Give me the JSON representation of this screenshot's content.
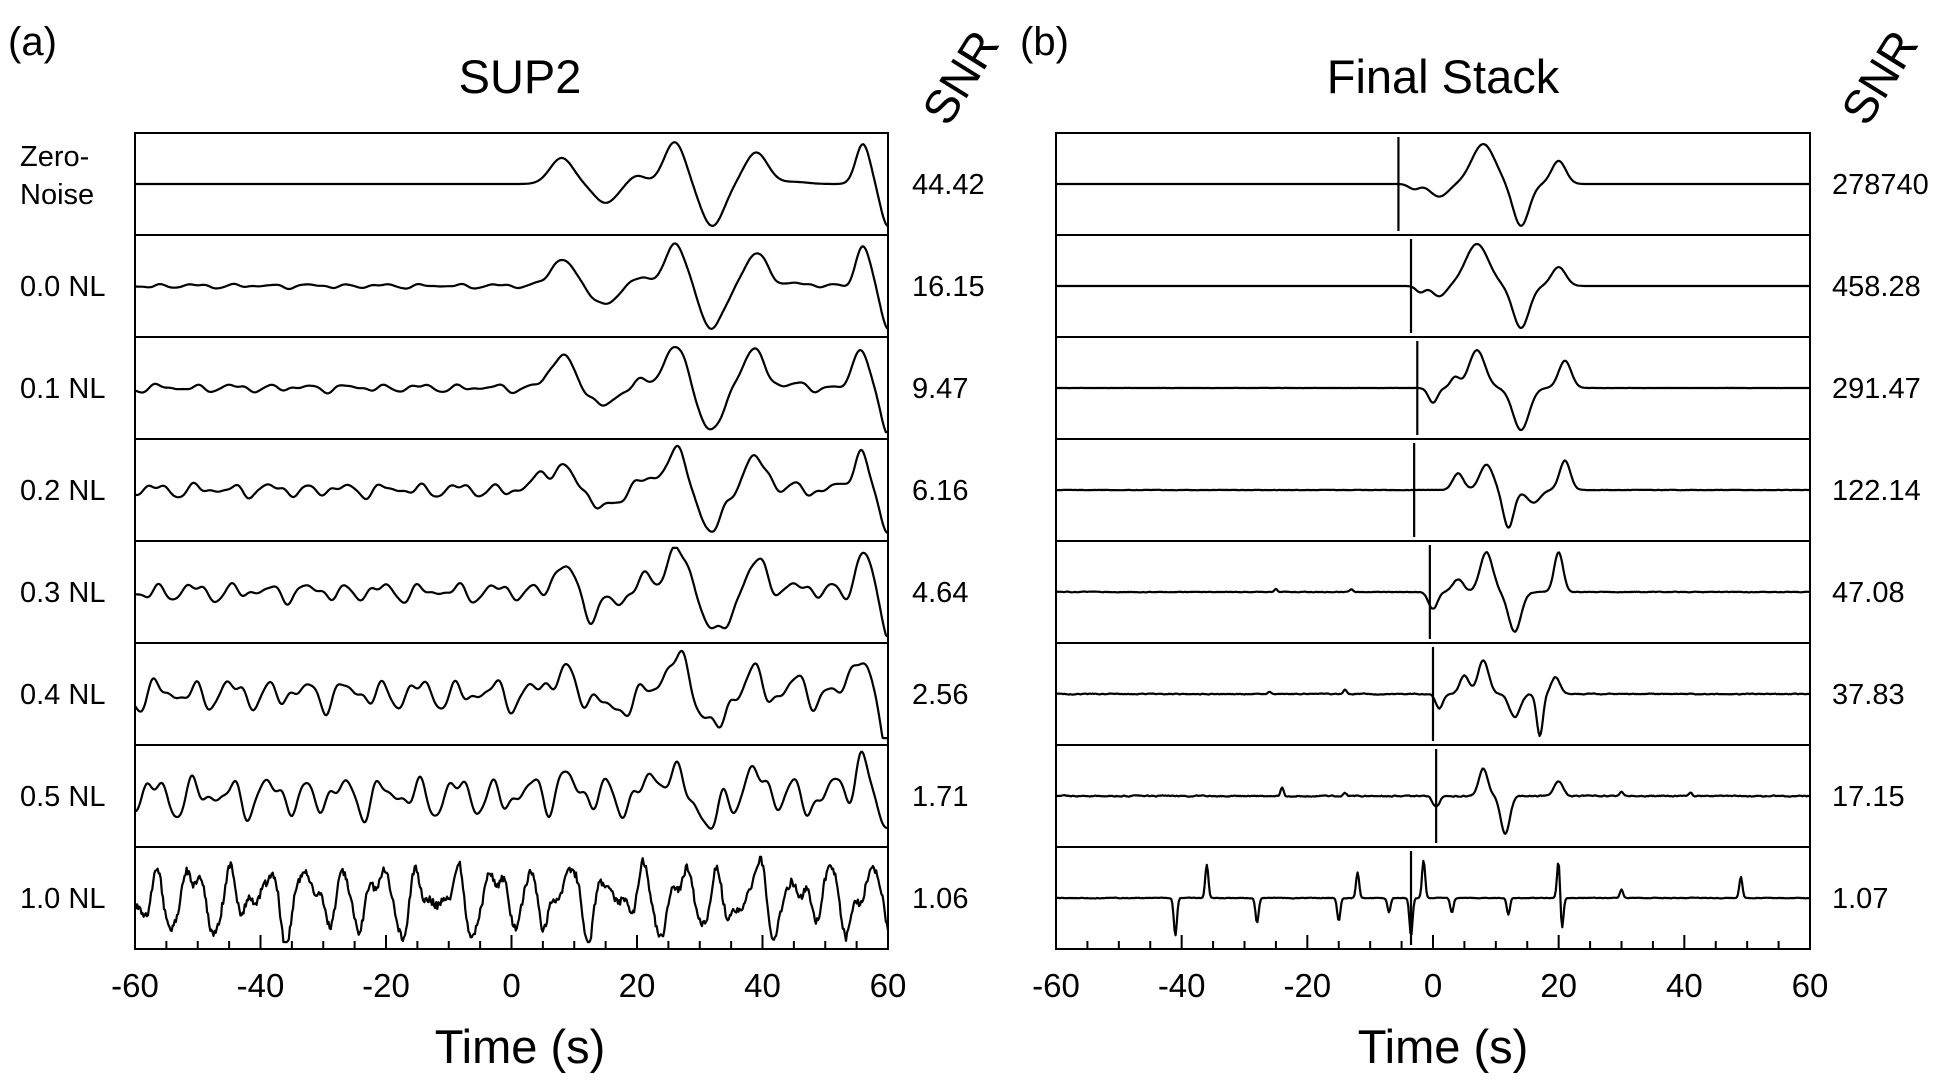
{
  "chart_data": [
    {
      "type": "line",
      "panel_letter": "(a)",
      "title": "SUP2",
      "snr_header": "SNR",
      "xlabel": "Time (s)",
      "xlim": [
        -60,
        60
      ],
      "xticks": [
        "-60",
        "-40",
        "-20",
        "0",
        "20",
        "40",
        "60"
      ],
      "rows": [
        {
          "label": [
            "Zero-",
            "Noise"
          ],
          "snr": "44.42",
          "noise": 0.0,
          "smooth": 0.0,
          "onset": -5,
          "peaks": [
            [
              8,
              0.62,
              2.6
            ],
            [
              15,
              -0.45,
              2.6
            ],
            [
              20,
              0.2,
              2
            ],
            [
              26,
              1.0,
              2.4
            ],
            [
              32,
              -1.0,
              2.6
            ],
            [
              39,
              0.75,
              2.6
            ],
            [
              45,
              0.05,
              3
            ],
            [
              50,
              0.0,
              2
            ],
            [
              56,
              0.95,
              1.6
            ],
            [
              60,
              -1.0,
              1.6
            ]
          ]
        },
        {
          "label": [
            "0.0 NL"
          ],
          "snr": "16.15",
          "noise": 0.09,
          "smooth": 0.0,
          "onset": -60,
          "peaks": [
            [
              8,
              0.62,
              2.6
            ],
            [
              15,
              -0.45,
              2.6
            ],
            [
              20,
              0.2,
              2
            ],
            [
              26,
              1.0,
              2.4
            ],
            [
              32,
              -1.0,
              2.6
            ],
            [
              39,
              0.75,
              2.6
            ],
            [
              45,
              0.05,
              3
            ],
            [
              56,
              0.95,
              1.6
            ],
            [
              60,
              -1.0,
              1.6
            ]
          ]
        },
        {
          "label": [
            "0.1 NL"
          ],
          "snr": "9.47",
          "noise": 0.16,
          "smooth": 0.0,
          "onset": -60,
          "peaks": [
            [
              8,
              0.8,
              2.4
            ],
            [
              15,
              -0.45,
              2.6
            ],
            [
              20,
              0.2,
              2
            ],
            [
              26,
              1.0,
              2.4
            ],
            [
              32,
              -1.0,
              2.6
            ],
            [
              38.5,
              0.9,
              2.6
            ],
            [
              45,
              0.05,
              3
            ],
            [
              55.5,
              0.95,
              1.6
            ],
            [
              60,
              -1.0,
              1.6
            ]
          ]
        },
        {
          "label": [
            "0.2 NL"
          ],
          "snr": "6.16",
          "noise": 0.28,
          "smooth": 0.0,
          "onset": -60,
          "peaks": [
            [
              5,
              0.3,
              2
            ],
            [
              8,
              0.55,
              2.2
            ],
            [
              15,
              -0.45,
              2.6
            ],
            [
              20,
              0.2,
              2
            ],
            [
              26,
              1.0,
              2.4
            ],
            [
              32,
              -1.0,
              2.6
            ],
            [
              38.5,
              0.75,
              2.6
            ],
            [
              45,
              0.05,
              3
            ],
            [
              55.5,
              0.95,
              1.6
            ],
            [
              60,
              -1.0,
              1.6
            ]
          ]
        },
        {
          "label": [
            "0.3 NL"
          ],
          "snr": "4.64",
          "noise": 0.38,
          "smooth": 0.0,
          "onset": -60,
          "peaks": [
            [
              8,
              0.55,
              2.2
            ],
            [
              13,
              -0.5,
              1.8
            ],
            [
              17,
              -0.3,
              1.6
            ],
            [
              21,
              0.25,
              2
            ],
            [
              26,
              1.0,
              2.4
            ],
            [
              33,
              -1.0,
              2.6
            ],
            [
              39,
              0.6,
              2.6
            ],
            [
              45,
              0.1,
              3
            ],
            [
              56,
              0.95,
              1.6
            ],
            [
              60,
              -1.0,
              1.6
            ]
          ]
        },
        {
          "label": [
            "0.4 NL"
          ],
          "snr": "2.56",
          "noise": 0.62,
          "smooth": 0.0,
          "onset": -60,
          "peaks": [
            [
              8,
              0.55,
              2.2
            ],
            [
              16,
              -0.6,
              1.8
            ],
            [
              26,
              0.8,
              2.4
            ],
            [
              33,
              -0.9,
              2.2
            ],
            [
              38,
              0.5,
              2.2
            ],
            [
              45,
              0.1,
              3
            ],
            [
              55,
              0.9,
              1.6
            ],
            [
              60,
              -1.0,
              1.6
            ]
          ]
        },
        {
          "label": [
            "0.5 NL"
          ],
          "snr": "1.71",
          "noise": 0.82,
          "smooth": 0.0,
          "onset": -60,
          "peaks": [
            [
              8,
              0.4,
              2
            ],
            [
              25,
              0.7,
              2.2
            ],
            [
              32,
              -0.8,
              2
            ],
            [
              38,
              0.5,
              2.2
            ],
            [
              55.5,
              0.9,
              1.6
            ],
            [
              60,
              -0.7,
              1.6
            ]
          ]
        },
        {
          "label": [
            "1.0 NL"
          ],
          "snr": "1.06",
          "noise": 1.45,
          "smooth": 0.18,
          "onset": -60,
          "peaks": []
        }
      ]
    },
    {
      "type": "line",
      "panel_letter": "(b)",
      "title": "Final Stack",
      "snr_header": "SNR",
      "xlabel": "Time (s)",
      "xlim": [
        -60,
        60
      ],
      "xticks": [
        "-60",
        "-40",
        "-20",
        "0",
        "20",
        "40",
        "60"
      ],
      "rows": [
        {
          "label": [],
          "snr": "278740",
          "marker": -5.5,
          "noise": 0.0,
          "spikes": [],
          "peaks": [
            [
              -3,
              -0.12,
              1.2
            ],
            [
              1,
              -0.3,
              2
            ],
            [
              8,
              0.95,
              2.6
            ],
            [
              14,
              -1.0,
              1.8
            ],
            [
              20,
              0.55,
              1.6
            ]
          ]
        },
        {
          "label": [],
          "snr": "458.28",
          "marker": -3.5,
          "noise": 0.0,
          "spikes": [],
          "peaks": [
            [
              -2,
              -0.15,
              1
            ],
            [
              1,
              -0.25,
              1.5
            ],
            [
              7,
              1.0,
              2.6
            ],
            [
              14,
              -1.0,
              1.8
            ],
            [
              20,
              0.45,
              1.6
            ]
          ]
        },
        {
          "label": [],
          "snr": "291.47",
          "marker": -2.5,
          "noise": 0.01,
          "spikes": [],
          "peaks": [
            [
              0,
              -0.35,
              1
            ],
            [
              3.5,
              0.25,
              1
            ],
            [
              7,
              0.9,
              1.8
            ],
            [
              14,
              -1.0,
              1.8
            ],
            [
              21,
              0.65,
              1.4
            ]
          ]
        },
        {
          "label": [],
          "snr": "122.14",
          "marker": -3,
          "noise": 0.03,
          "spikes": [],
          "peaks": [
            [
              4,
              0.4,
              1.2
            ],
            [
              8.5,
              0.6,
              1.5
            ],
            [
              12,
              -0.9,
              1.2
            ],
            [
              16,
              -0.3,
              1.5
            ],
            [
              21,
              0.7,
              1.2
            ]
          ]
        },
        {
          "label": [],
          "snr": "47.08",
          "marker": -0.5,
          "noise": 0.05,
          "spikes": [
            [
              -25,
              0.08
            ],
            [
              -13,
              0.06
            ]
          ],
          "peaks": [
            [
              0,
              -0.4,
              1
            ],
            [
              4,
              0.3,
              1.2
            ],
            [
              8.5,
              0.95,
              1.4
            ],
            [
              13,
              -0.95,
              1.4
            ],
            [
              20,
              0.95,
              1
            ]
          ]
        },
        {
          "label": [],
          "snr": "37.83",
          "marker": 0,
          "noise": 0.07,
          "spikes": [
            [
              -14,
              0.1
            ],
            [
              -26,
              0.06
            ]
          ],
          "peaks": [
            [
              1,
              -0.35,
              0.8
            ],
            [
              5,
              0.45,
              1
            ],
            [
              8,
              0.8,
              1.2
            ],
            [
              13,
              -0.55,
              1.2
            ],
            [
              17,
              -1.0,
              0.7
            ],
            [
              19.5,
              0.4,
              1
            ]
          ]
        },
        {
          "label": [],
          "snr": "17.15",
          "marker": 0.5,
          "noise": 0.09,
          "spikes": [
            [
              -24,
              0.2
            ],
            [
              -14,
              0.08
            ],
            [
              30,
              0.1
            ],
            [
              41,
              0.08
            ]
          ],
          "peaks": [
            [
              0.5,
              -0.25,
              0.8
            ],
            [
              8,
              0.65,
              1
            ],
            [
              11.5,
              -0.9,
              1
            ],
            [
              20,
              0.35,
              1
            ]
          ]
        },
        {
          "label": [],
          "snr": "1.07",
          "marker": -3.5,
          "noise": 0.05,
          "spikes": [
            [
              -41,
              -0.9
            ],
            [
              -36,
              0.8
            ],
            [
              -28,
              -0.6
            ],
            [
              -15,
              -0.55
            ],
            [
              -12,
              0.6
            ],
            [
              -7,
              -0.35
            ],
            [
              -1.5,
              0.9
            ],
            [
              3,
              -0.35
            ],
            [
              12,
              -0.4
            ],
            [
              20,
              0.95
            ],
            [
              20.5,
              -0.8
            ],
            [
              30,
              0.2
            ],
            [
              49,
              0.5
            ],
            [
              -3.5,
              -0.9
            ]
          ],
          "peaks": []
        }
      ]
    }
  ]
}
